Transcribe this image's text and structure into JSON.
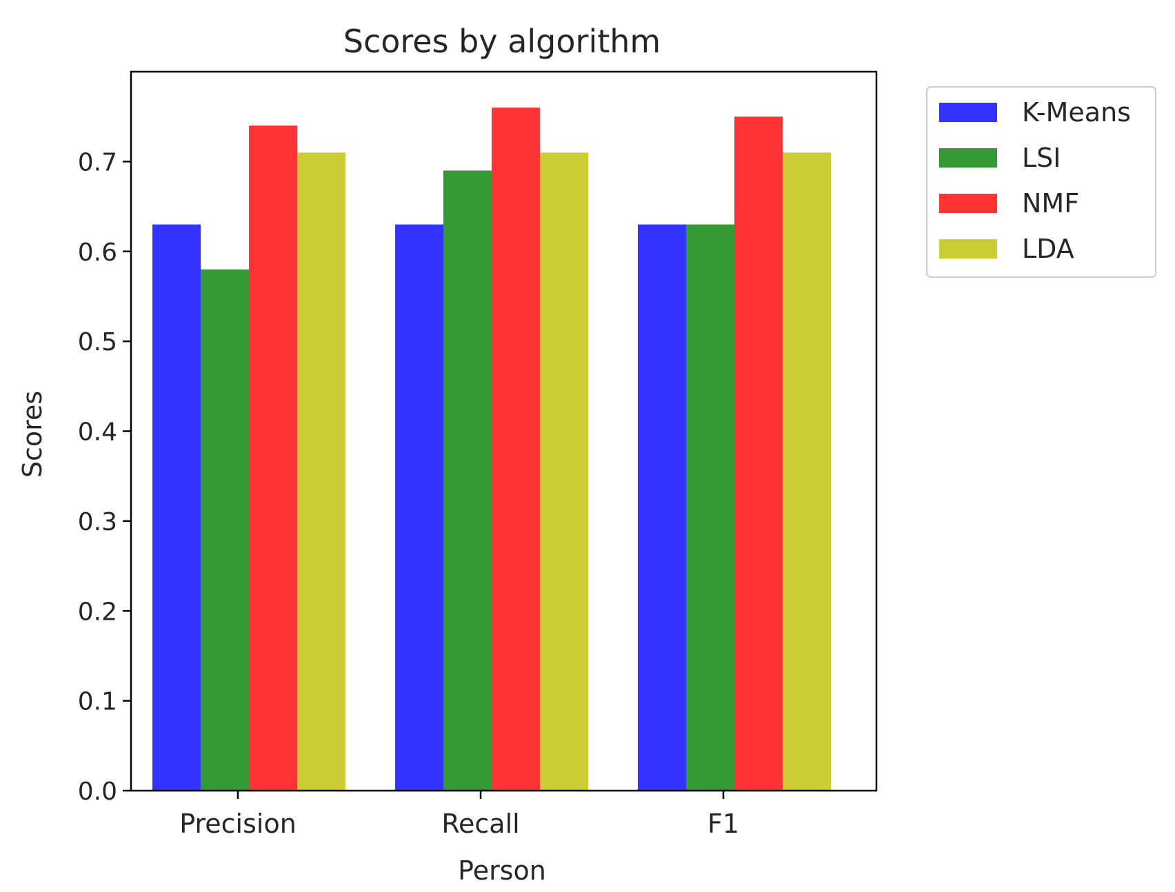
{
  "chart_data": {
    "type": "bar",
    "title": "Scores by algorithm",
    "xlabel": "Person",
    "ylabel": "Scores",
    "categories": [
      "Precision",
      "Recall",
      "F1"
    ],
    "series": [
      {
        "name": "K-Means",
        "color": "#3333ff",
        "values": [
          0.63,
          0.63,
          0.63
        ]
      },
      {
        "name": "LSI",
        "color": "#339933",
        "values": [
          0.58,
          0.69,
          0.63
        ]
      },
      {
        "name": "NMF",
        "color": "#ff3333",
        "values": [
          0.74,
          0.76,
          0.75
        ]
      },
      {
        "name": "LDA",
        "color": "#cccc33",
        "values": [
          0.71,
          0.71,
          0.71
        ]
      }
    ],
    "ylim": [
      0,
      0.8
    ],
    "yticks": [
      "0.0",
      "0.1",
      "0.2",
      "0.3",
      "0.4",
      "0.5",
      "0.6",
      "0.7"
    ],
    "grid": false,
    "legend_position": "outside-top-right"
  }
}
